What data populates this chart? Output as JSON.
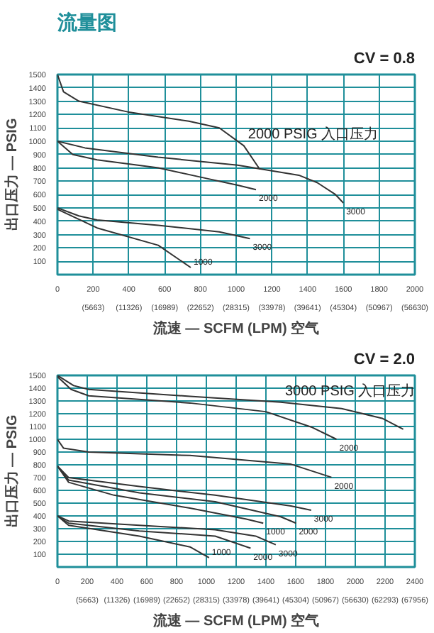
{
  "chart_data": [
    {
      "type": "line",
      "title": "流量图",
      "subtitle": "CV = 0.8",
      "xlabel": "流速 — SCFM (LPM) 空气",
      "ylabel": "出口压力 — PSIG",
      "xlim": [
        0,
        2000
      ],
      "ylim": [
        0,
        1500
      ],
      "xticks": [
        0,
        200,
        400,
        600,
        800,
        1000,
        1200,
        1400,
        1600,
        1800,
        2000
      ],
      "x2lim": [
        0,
        56630
      ],
      "x2ticks": [
        {
          "value": 5663,
          "label": "(5663)"
        },
        {
          "value": 11326,
          "label": "(11326)"
        },
        {
          "value": 16989,
          "label": "(16989)"
        },
        {
          "value": 22652,
          "label": "(22652)"
        },
        {
          "value": 28315,
          "label": "(28315)"
        },
        {
          "value": 33978,
          "label": "(33978)"
        },
        {
          "value": 39641,
          "label": "(39641)"
        },
        {
          "value": 45304,
          "label": "(45304)"
        },
        {
          "value": 50967,
          "label": "(50967)"
        },
        {
          "value": 56630,
          "label": "(56630)"
        }
      ],
      "yticks": [
        100,
        200,
        300,
        400,
        500,
        600,
        700,
        800,
        900,
        1000,
        1100,
        1200,
        1300,
        1400,
        1500
      ],
      "grid": true,
      "series": [
        {
          "color": "#333333",
          "x": [
            0,
            34,
            120,
            393,
            735,
            906,
            1043,
            1132
          ],
          "values": [
            1500,
            1370,
            1300,
            1220,
            1150,
            1100,
            966,
            790
          ]
        },
        {
          "color": "#333333",
          "x": [
            0,
            154,
            564,
            1009,
            1351,
            1453,
            1556,
            1600
          ],
          "values": [
            1000,
            950,
            880,
            820,
            745,
            690,
            600,
            537
          ]
        },
        {
          "color": "#333333",
          "x": [
            0,
            86,
            222,
            564,
            838,
            1009,
            1111
          ],
          "values": [
            1000,
            900,
            860,
            800,
            720,
            670,
            637
          ]
        },
        {
          "color": "#333333",
          "x": [
            0,
            120,
            222,
            564,
            906,
            1077
          ],
          "values": [
            500,
            440,
            410,
            370,
            320,
            270
          ]
        },
        {
          "color": "#333333",
          "x": [
            0,
            222,
            564,
            746
          ],
          "values": [
            490,
            350,
            220,
            53
          ]
        }
      ],
      "annotations": [
        {
          "text": "2000 PSIG 入口压力",
          "x": 1043,
          "y": 966
        },
        {
          "text": "2000",
          "x": 1111,
          "y": 637
        },
        {
          "text": "3000",
          "x": 1600,
          "y": 537
        },
        {
          "text": "3000",
          "x": 1077,
          "y": 270
        },
        {
          "text": "1000",
          "x": 746,
          "y": 53
        }
      ]
    },
    {
      "type": "line",
      "subtitle": "CV = 2.0",
      "xlabel": "流速 — SCFM (LPM) 空气",
      "ylabel": "出口压力 — PSIG",
      "xlim": [
        0,
        2400
      ],
      "ylim": [
        0,
        1500
      ],
      "xticks": [
        0,
        200,
        400,
        600,
        800,
        1000,
        1200,
        1400,
        1600,
        1800,
        2000,
        2200,
        2400
      ],
      "x2lim": [
        0,
        67956
      ],
      "x2ticks": [
        {
          "value": 5663,
          "label": "(5663)"
        },
        {
          "value": 11326,
          "label": "(11326)"
        },
        {
          "value": 16989,
          "label": "(16989)"
        },
        {
          "value": 22652,
          "label": "(22652)"
        },
        {
          "value": 28315,
          "label": "(28315)"
        },
        {
          "value": 33978,
          "label": "(33978)"
        },
        {
          "value": 39641,
          "label": "(39641)"
        },
        {
          "value": 45304,
          "label": "(45304)"
        },
        {
          "value": 50967,
          "label": "(50967)"
        },
        {
          "value": 56630,
          "label": "(56630)"
        },
        {
          "value": 62293,
          "label": "(62293)"
        },
        {
          "value": 67956,
          "label": "(67956)"
        }
      ],
      "yticks": [
        100,
        200,
        300,
        400,
        500,
        600,
        700,
        800,
        900,
        1000,
        1100,
        1200,
        1300,
        1400,
        1500
      ],
      "grid": true,
      "series": [
        {
          "color": "#333333",
          "x": [
            0,
            109,
            210,
            890,
            1500,
            1908,
            2180,
            2322
          ],
          "values": [
            1500,
            1420,
            1390,
            1336,
            1290,
            1240,
            1164,
            1079
          ]
        },
        {
          "color": "#333333",
          "x": [
            0,
            92,
            210,
            890,
            1399,
            1704,
            1874
          ],
          "values": [
            1490,
            1390,
            1340,
            1284,
            1216,
            1096,
            1000
          ]
        },
        {
          "color": "#333333",
          "x": [
            0,
            41,
            210,
            890,
            1568,
            1840
          ],
          "values": [
            1000,
            930,
            900,
            873,
            805,
            702
          ]
        },
        {
          "color": "#333333",
          "x": [
            0,
            75,
            550,
            1059,
            1568,
            1704
          ],
          "values": [
            790,
            700,
            630,
            562,
            478,
            444
          ]
        },
        {
          "color": "#333333",
          "x": [
            0,
            75,
            550,
            1059,
            1500,
            1602
          ],
          "values": [
            790,
            680,
            580,
            511,
            393,
            343
          ]
        },
        {
          "color": "#333333",
          "x": [
            0,
            75,
            380,
            890,
            1263,
            1382
          ],
          "values": [
            790,
            663,
            562,
            461,
            376,
            343
          ]
        },
        {
          "color": "#333333",
          "x": [
            0,
            75,
            550,
            1059,
            1331,
            1466
          ],
          "values": [
            400,
            360,
            326,
            292,
            242,
            174
          ]
        },
        {
          "color": "#333333",
          "x": [
            0,
            75,
            550,
            1059,
            1297
          ],
          "values": [
            400,
            343,
            282,
            242,
            147
          ]
        },
        {
          "color": "#333333",
          "x": [
            0,
            75,
            550,
            890,
            1018
          ],
          "values": [
            400,
            326,
            242,
            157,
            73
          ]
        }
      ],
      "annotations": [
        {
          "text": "3000 PSIG 入口压力",
          "x": 1500,
          "y": 1290
        },
        {
          "text": "2000",
          "x": 1874,
          "y": 1000
        },
        {
          "text": "2000",
          "x": 1840,
          "y": 702
        },
        {
          "text": "3000",
          "x": 1704,
          "y": 444
        },
        {
          "text": "2000",
          "x": 1602,
          "y": 343
        },
        {
          "text": "1000",
          "x": 1382,
          "y": 343
        },
        {
          "text": "3000",
          "x": 1466,
          "y": 174
        },
        {
          "text": "2000",
          "x": 1297,
          "y": 147
        },
        {
          "text": "1000",
          "x": 1018,
          "y": 73
        }
      ]
    }
  ]
}
